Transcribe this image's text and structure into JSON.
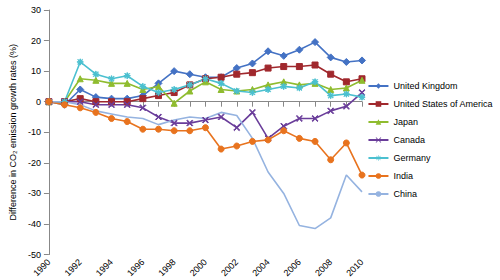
{
  "chart_data": {
    "type": "line",
    "y_label": "Difference in CO₂ emission growth rates (%)",
    "categories": [
      "1990",
      null,
      "1992",
      null,
      "1994",
      null,
      "1996",
      null,
      "1998",
      null,
      "2000",
      null,
      "2002",
      null,
      "2004",
      null,
      "2006",
      null,
      "2008",
      null,
      "2010"
    ],
    "ylim": [
      -50,
      30
    ],
    "yticks": [
      -50,
      -40,
      -30,
      -20,
      -10,
      0,
      10,
      20,
      30
    ],
    "grid": false,
    "legend": "right",
    "series": [
      {
        "name": "United Kingdom",
        "color": "#4472c4",
        "marker": "diamond",
        "values": [
          0,
          -1,
          4,
          1.5,
          1,
          1,
          2,
          6,
          10,
          9,
          8,
          8,
          11,
          12.5,
          16.5,
          15,
          17,
          19.5,
          14.5,
          13,
          13.5
        ]
      },
      {
        "name": "United States of America",
        "color": "#a0282d",
        "marker": "square",
        "values": [
          0,
          0,
          1,
          0,
          0,
          0,
          1,
          2,
          3,
          5.5,
          7.5,
          8,
          9,
          9.5,
          11,
          11.5,
          11.5,
          12,
          9,
          6.5,
          7.5
        ]
      },
      {
        "name": "Japan",
        "color": "#8fbc2f",
        "marker": "triangle",
        "values": [
          0,
          0,
          7.5,
          7,
          6,
          6,
          4,
          5,
          -0.5,
          3.5,
          6.5,
          4,
          3.5,
          4,
          5.5,
          6.5,
          5.5,
          6,
          4,
          4.5,
          7
        ]
      },
      {
        "name": "Canada",
        "color": "#6a3d9a",
        "marker": "x",
        "values": [
          0,
          0,
          0,
          -1,
          -1,
          -1,
          -2,
          -5,
          -7,
          -7,
          -6,
          -5,
          -8.5,
          -3.5,
          -12,
          -8,
          -5.5,
          -5.5,
          -3,
          -1.5,
          3
        ]
      },
      {
        "name": "Germany",
        "color": "#4bc0d0",
        "marker": "star",
        "values": [
          0,
          0,
          13,
          9,
          7.5,
          8.5,
          5,
          3,
          4,
          5.5,
          7.5,
          6,
          3.5,
          3,
          4,
          5,
          4.5,
          6.5,
          2,
          2.5,
          1.5
        ]
      },
      {
        "name": "India",
        "color": "#e8731e",
        "marker": "circle",
        "values": [
          0,
          -1,
          -2,
          -3.5,
          -5.5,
          -6.5,
          -9,
          -9,
          -9.5,
          -9.5,
          -8.5,
          -15.5,
          -14.5,
          -13,
          -12.5,
          -9.5,
          -12,
          -13,
          -19,
          -13.5,
          -24
        ]
      },
      {
        "name": "China",
        "color": "#95b3e0",
        "marker": "none",
        "values": [
          0,
          0,
          -1,
          -3,
          -4,
          -5,
          -5.5,
          -7.5,
          -6,
          -5,
          -5.5,
          -3.5,
          -4.5,
          -12,
          -23,
          -30,
          -40.5,
          -41.5,
          -38,
          -24,
          -29.5
        ]
      }
    ]
  }
}
